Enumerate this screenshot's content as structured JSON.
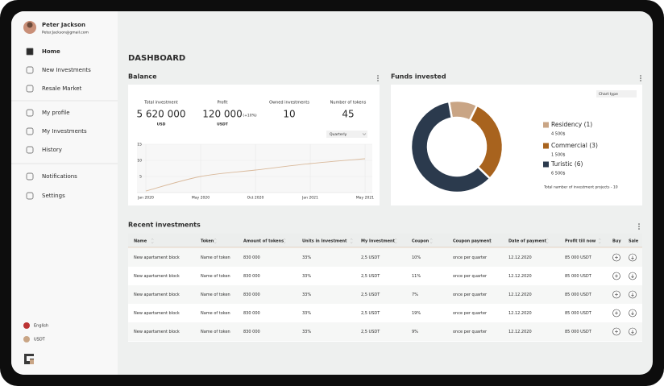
{
  "sidebar": {
    "user": {
      "name": "Peter Jackson",
      "email": "Peter.Jackson@gmail.com"
    },
    "menu": [
      "Home",
      "New Investments",
      "Resale Market",
      "My profile",
      "My Investments",
      "History",
      "Notifications",
      "Settings"
    ],
    "language": "English",
    "currency": "USDT"
  },
  "header": {
    "title": "DASHBOARD"
  },
  "balance": {
    "title": "Balance",
    "stats": [
      {
        "label": "Total investment",
        "value": "5 620 000",
        "unit": "USD"
      },
      {
        "label": "Profit",
        "value": "120 000",
        "change": "(+10%)",
        "unit": "USDT"
      },
      {
        "label": "Owned investments",
        "value": "10"
      },
      {
        "label": "Number of tokens",
        "value": "45"
      }
    ],
    "period": "Quarterly",
    "chart": {
      "type": "line",
      "categories": [
        "Jan 2020",
        "May 2020",
        "Oct 2020",
        "Jan 2021",
        "May 2021"
      ],
      "values": [
        0.5,
        5,
        7,
        9,
        10.5
      ],
      "ylim": [
        0,
        15
      ],
      "yticks": [
        5,
        10,
        15
      ],
      "color": "#d9b99b"
    }
  },
  "funds": {
    "title": "Funds invested",
    "chart_type": "Chart type",
    "chart": {
      "type": "donut",
      "segments": [
        {
          "name": "Residency",
          "count": 1,
          "count_label": "(1)",
          "amount": "4 500$",
          "color": "#c9a585"
        },
        {
          "name": "Commercial",
          "count": 3,
          "count_label": "(3)",
          "amount": "1 500$",
          "color": "#a8631e"
        },
        {
          "name": "Turistic",
          "count": 6,
          "count_label": "(6)",
          "amount": "6 500$",
          "color": "#2b3a4d"
        }
      ]
    },
    "note": "Total namber of investment projects - 10"
  },
  "recent": {
    "title": "Recent investments",
    "columns": [
      "Name",
      "Token",
      "Amount of tokens",
      "Units in Investment",
      "My Investment",
      "Coupon",
      "Coupon payment",
      "Date of payment",
      "Profit till now",
      "Buy",
      "Sale"
    ],
    "rows": [
      [
        "New apartament block",
        "Name of token",
        "830 000",
        "33%",
        "2,5 USDT",
        "10%",
        "once per quarter",
        "12.12.2020",
        "85 000 USDT"
      ],
      [
        "New apartament block",
        "Name of token",
        "830 000",
        "33%",
        "2,5 USDT",
        "11%",
        "once per quarter",
        "12.12.2020",
        "85 000 USDT"
      ],
      [
        "New apartament block",
        "Name of token",
        "830 000",
        "33%",
        "2,5 USDT",
        "7%",
        "once per quarter",
        "12.12.2020",
        "85 000 USDT"
      ],
      [
        "New apartament block",
        "Name of token",
        "830 000",
        "33%",
        "2,5 USDT",
        "19%",
        "once per quarter",
        "12.12.2020",
        "85 000 USDT"
      ],
      [
        "New apartament block",
        "Name of token",
        "830 000",
        "33%",
        "2,5 USDT",
        "9%",
        "once per quarter",
        "12.12.2020",
        "85 000 USDT"
      ]
    ]
  }
}
